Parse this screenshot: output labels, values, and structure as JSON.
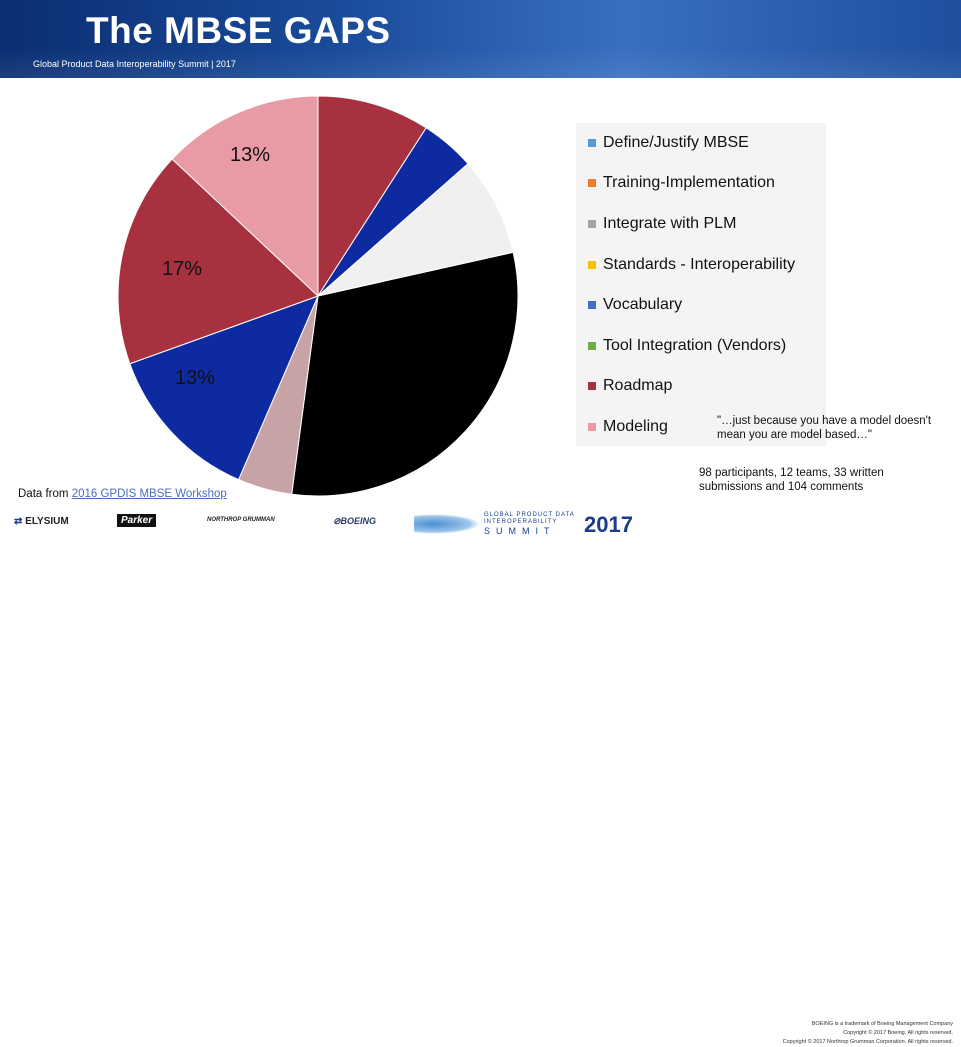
{
  "header": {
    "title": "The MBSE GAPS",
    "subtitle": "Global Product Data Interoperability Summit | 2017"
  },
  "chart_data": {
    "type": "pie",
    "categories": [
      "Define/Justify MBSE",
      "Training-Implementation",
      "Integrate with PLM",
      "Standards - Interoperability",
      "Vocabulary",
      "Tool Integration (Vendors)",
      "Roadmap",
      "Modeling"
    ],
    "series": [
      {
        "values": [
          0.091,
          0.044,
          0.08,
          0.306,
          0.044,
          0.13,
          0.175,
          0.13
        ],
        "slice_colors": [
          "#a8313f",
          "#0e2aa0",
          "#f0f0f0",
          "#000000",
          "#c8a3a6",
          "#0e2aa0",
          "#a8313f",
          "#e89aa5"
        ]
      }
    ],
    "data_labels": [
      {
        "category": "Modeling",
        "text": "13%"
      },
      {
        "category": "Roadmap",
        "text": "17%"
      },
      {
        "category": "Tool Integration (Vendors)",
        "text": "13%"
      }
    ],
    "legend": {
      "position": "right",
      "items": [
        {
          "label": "Define/Justify MBSE",
          "color": "#5b9bd5"
        },
        {
          "label": "Training-Implementation",
          "color": "#ed7d31"
        },
        {
          "label": "Integrate with PLM",
          "color": "#a5a5a5"
        },
        {
          "label": "Standards - Interoperability",
          "color": "#ffc000"
        },
        {
          "label": "Vocabulary",
          "color": "#4472c4"
        },
        {
          "label": "Tool Integration (Vendors)",
          "color": "#70ad47"
        },
        {
          "label": "Roadmap",
          "color": "#a8313f"
        },
        {
          "label": "Modeling",
          "color": "#e89aa5"
        }
      ]
    },
    "title": ""
  },
  "notes": {
    "quote": "\"…just because you have a model doesn't mean you are model based…\"",
    "stats": "98 participants, 12 teams, 33 written submissions and 104 comments",
    "source_prefix": "Data from ",
    "source_link": "2016 GPDIS MBSE Workshop"
  },
  "footer": {
    "logos": [
      "ELYSIUM",
      "Parker",
      "NORTHROP GRUMMAN",
      "BOEING"
    ],
    "summit_logo_top": "GLOBAL PRODUCT DATA",
    "summit_logo_mid": "INTEROPERABILITY",
    "summit_logo_bottom": "SUMMIT",
    "summit_year": "2017",
    "copyright": [
      "BOEING is a trademark of Boeing Management Company",
      "Copyright © 2017 Boeing. All rights reserved.",
      "Copyright © 2017 Northrop Grumman Corporation. All rights reserved."
    ]
  }
}
